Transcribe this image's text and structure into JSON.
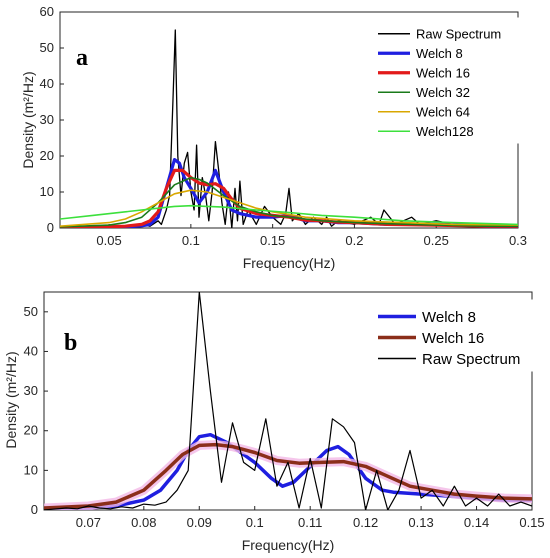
{
  "chart_data": [
    {
      "type": "line",
      "panel_label": "a",
      "xlabel": "Frequency(Hz)",
      "ylabel": "Density (m²/Hz)",
      "xlim": [
        0.02,
        0.3
      ],
      "ylim": [
        0,
        60
      ],
      "xticks": [
        0.05,
        0.1,
        0.15,
        0.2,
        0.25,
        0.3
      ],
      "xtick_labels": [
        "0.05",
        "0.1",
        "0.15",
        "0.2",
        "0.25",
        "0.3"
      ],
      "yticks": [
        0,
        10,
        20,
        30,
        40,
        50,
        60
      ],
      "ytick_labels": [
        "0",
        "10",
        "20",
        "30",
        "40",
        "50",
        "60"
      ],
      "legend_position": "top-right",
      "series": [
        {
          "name": "Raw Spectrum",
          "color": "#000000",
          "width": 1.3,
          "x": [
            0.02,
            0.04,
            0.06,
            0.07,
            0.075,
            0.08,
            0.082,
            0.085,
            0.087,
            0.089,
            0.0905,
            0.092,
            0.094,
            0.096,
            0.098,
            0.1,
            0.102,
            0.1035,
            0.105,
            0.107,
            0.109,
            0.111,
            0.113,
            0.115,
            0.117,
            0.119,
            0.121,
            0.123,
            0.125,
            0.127,
            0.1285,
            0.13,
            0.132,
            0.135,
            0.14,
            0.145,
            0.15,
            0.155,
            0.158,
            0.16,
            0.162,
            0.166,
            0.17,
            0.175,
            0.18,
            0.183,
            0.186,
            0.19,
            0.2,
            0.21,
            0.215,
            0.218,
            0.225,
            0.235,
            0.24,
            0.25,
            0.26,
            0.27,
            0.28,
            0.29,
            0.3
          ],
          "y": [
            0,
            0,
            0.3,
            1,
            0.5,
            2,
            1,
            5,
            9,
            35,
            55,
            20,
            9,
            18,
            21,
            10,
            5,
            23,
            3,
            14,
            9,
            2,
            10,
            24,
            16,
            7,
            1,
            10,
            0,
            11,
            2,
            13,
            1,
            5,
            1,
            6,
            3,
            1,
            4,
            11,
            2,
            4,
            1,
            3,
            1,
            3,
            0.5,
            2,
            1,
            3,
            1,
            5,
            1,
            3,
            1,
            2,
            1,
            1,
            0.5,
            1,
            0.5
          ]
        },
        {
          "name": "Welch 8",
          "color": "#1f1fe0",
          "width": 3.2,
          "x": [
            0.02,
            0.06,
            0.07,
            0.075,
            0.08,
            0.085,
            0.09,
            0.093,
            0.096,
            0.1,
            0.105,
            0.11,
            0.115,
            0.12,
            0.125,
            0.13,
            0.14,
            0.15,
            0.16,
            0.17,
            0.18,
            0.19,
            0.2,
            0.22,
            0.25,
            0.28,
            0.3
          ],
          "y": [
            0,
            0.3,
            0.6,
            1,
            3,
            11,
            19,
            18,
            14,
            11,
            7,
            10,
            16,
            10,
            5,
            4,
            3,
            3,
            3.5,
            2,
            2,
            1.5,
            1.5,
            1,
            1,
            0.5,
            0.5
          ]
        },
        {
          "name": "Welch 16",
          "color": "#e21a1a",
          "width": 3.2,
          "x": [
            0.02,
            0.06,
            0.07,
            0.075,
            0.08,
            0.085,
            0.09,
            0.095,
            0.1,
            0.105,
            0.11,
            0.115,
            0.12,
            0.125,
            0.13,
            0.14,
            0.15,
            0.16,
            0.17,
            0.18,
            0.19,
            0.2,
            0.22,
            0.25,
            0.28,
            0.3
          ],
          "y": [
            0,
            0.5,
            1,
            2,
            4.5,
            11,
            16,
            16,
            14,
            12.5,
            12,
            12.3,
            11,
            8,
            5.5,
            4,
            3.5,
            3,
            2.2,
            2,
            1.6,
            1.5,
            1,
            0.8,
            0.5,
            0.5
          ]
        },
        {
          "name": "Welch 32",
          "color": "#1a7a1a",
          "width": 1.6,
          "x": [
            0.02,
            0.05,
            0.06,
            0.07,
            0.08,
            0.09,
            0.1,
            0.105,
            0.11,
            0.12,
            0.13,
            0.14,
            0.15,
            0.16,
            0.17,
            0.18,
            0.2,
            0.22,
            0.25,
            0.28,
            0.3
          ],
          "y": [
            0.3,
            0.8,
            1.5,
            3,
            7,
            12,
            14,
            13.5,
            12.5,
            9,
            6,
            4.5,
            3.5,
            3,
            2.5,
            2,
            1.5,
            1.2,
            0.8,
            0.5,
            0.5
          ]
        },
        {
          "name": "Welch 64",
          "color": "#d9a700",
          "width": 1.6,
          "x": [
            0.02,
            0.05,
            0.06,
            0.07,
            0.08,
            0.09,
            0.1,
            0.11,
            0.12,
            0.13,
            0.14,
            0.15,
            0.17,
            0.2,
            0.23,
            0.26,
            0.3
          ],
          "y": [
            0.5,
            1.5,
            2.5,
            4.5,
            7,
            9.5,
            10.5,
            10,
            8.5,
            7,
            5.5,
            4.5,
            3,
            2,
            1.5,
            1,
            0.8
          ]
        },
        {
          "name": "Welch128",
          "color": "#3ce03c",
          "width": 1.6,
          "x": [
            0.02,
            0.04,
            0.06,
            0.08,
            0.09,
            0.1,
            0.11,
            0.12,
            0.14,
            0.16,
            0.18,
            0.2,
            0.23,
            0.26,
            0.3
          ],
          "y": [
            2.5,
            3.5,
            4.5,
            5.5,
            6,
            6.2,
            6,
            5.8,
            5,
            4.3,
            3.5,
            3,
            2,
            1.5,
            1
          ]
        }
      ]
    },
    {
      "type": "line",
      "panel_label": "b",
      "xlabel": "Frequency(Hz)",
      "ylabel": "Density (m²/Hz)",
      "xlim": [
        0.062,
        0.15
      ],
      "ylim": [
        0,
        55
      ],
      "xticks": [
        0.07,
        0.08,
        0.09,
        0.1,
        0.11,
        0.12,
        0.13,
        0.14,
        0.15
      ],
      "xtick_labels": [
        "0.07",
        "0.08",
        "0.09",
        "0.1",
        "0.11",
        "0.12",
        "0.13",
        "0.14",
        "0.15"
      ],
      "yticks": [
        0,
        10,
        20,
        30,
        40,
        50
      ],
      "ytick_labels": [
        "0",
        "10",
        "20",
        "30",
        "40",
        "50"
      ],
      "legend_position": "top-right",
      "series": [
        {
          "name": "Welch 8",
          "color": "#1f1fe0",
          "width": 3.5,
          "x": [
            0.062,
            0.07,
            0.075,
            0.08,
            0.083,
            0.086,
            0.088,
            0.09,
            0.092,
            0.095,
            0.098,
            0.1,
            0.103,
            0.105,
            0.107,
            0.11,
            0.113,
            0.115,
            0.117,
            0.12,
            0.123,
            0.125,
            0.13,
            0.135,
            0.14,
            0.145,
            0.15
          ],
          "y": [
            0.3,
            0.5,
            1,
            2.5,
            5,
            10,
            15,
            18.5,
            19,
            17,
            14,
            12,
            8,
            6,
            7,
            11,
            15,
            16,
            14,
            8,
            5,
            4.5,
            4,
            3.5,
            3,
            2.5,
            2.5
          ]
        },
        {
          "name": "Welch 16",
          "color": "#8b2e1a",
          "width": 3.5,
          "x": [
            0.062,
            0.07,
            0.075,
            0.08,
            0.084,
            0.087,
            0.09,
            0.093,
            0.096,
            0.1,
            0.104,
            0.108,
            0.112,
            0.116,
            0.12,
            0.124,
            0.128,
            0.132,
            0.136,
            0.14,
            0.145,
            0.15
          ],
          "y": [
            0.5,
            1,
            2,
            5,
            10,
            14,
            16.3,
            16.5,
            16,
            14.5,
            12.5,
            11.8,
            12,
            12.2,
            11,
            8.5,
            6,
            5,
            4,
            3.5,
            3,
            2.8
          ]
        },
        {
          "name": "Raw Spectrum",
          "color": "#000000",
          "width": 1.2,
          "x": [
            0.062,
            0.066,
            0.068,
            0.07,
            0.072,
            0.074,
            0.076,
            0.078,
            0.08,
            0.082,
            0.084,
            0.086,
            0.088,
            0.09,
            0.092,
            0.094,
            0.096,
            0.098,
            0.1,
            0.102,
            0.104,
            0.106,
            0.108,
            0.11,
            0.112,
            0.114,
            0.116,
            0.118,
            0.12,
            0.122,
            0.124,
            0.126,
            0.128,
            0.13,
            0.132,
            0.134,
            0.136,
            0.138,
            0.14,
            0.142,
            0.144,
            0.146,
            0.148,
            0.15
          ],
          "y": [
            0,
            0.5,
            0.3,
            1,
            0.5,
            0.3,
            0.8,
            0.5,
            1.5,
            1.2,
            2,
            5,
            10,
            55,
            30,
            7,
            22,
            12,
            10,
            23,
            6,
            12,
            0.5,
            13,
            0.5,
            23,
            21,
            17,
            0,
            10,
            0,
            5,
            15,
            3,
            5,
            1,
            6,
            1,
            3,
            1,
            4,
            1,
            2,
            1
          ]
        }
      ]
    }
  ]
}
